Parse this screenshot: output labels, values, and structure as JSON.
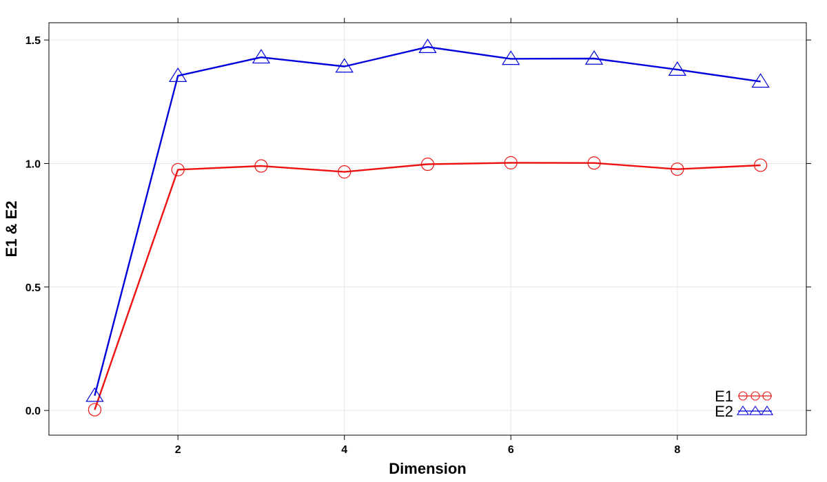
{
  "chart_data": {
    "type": "line",
    "title": "",
    "xlabel": "Dimension",
    "ylabel": "E1 & E2",
    "xlim": [
      0.45,
      9.55
    ],
    "ylim": [
      -0.1,
      1.57
    ],
    "xticks": [
      2,
      4,
      6,
      8
    ],
    "yticks": [
      0.0,
      0.5,
      1.0,
      1.5
    ],
    "xtick_labels": [
      "2",
      "4",
      "6",
      "8"
    ],
    "ytick_labels": [
      "0.0",
      "0.5",
      "1.0",
      "1.5"
    ],
    "grid": true,
    "legend_position": "bottom-right",
    "x": [
      1,
      2,
      3,
      4,
      5,
      6,
      7,
      8,
      9
    ],
    "series": [
      {
        "name": "E1",
        "marker": "circle",
        "color": "#ee1111",
        "values": [
          0.003,
          0.975,
          0.99,
          0.966,
          0.997,
          1.003,
          1.002,
          0.977,
          0.993
        ]
      },
      {
        "name": "E2",
        "marker": "triangle",
        "color": "#0000dd",
        "values": [
          0.06,
          1.355,
          1.43,
          1.393,
          1.472,
          1.424,
          1.425,
          1.38,
          1.332
        ]
      }
    ]
  }
}
